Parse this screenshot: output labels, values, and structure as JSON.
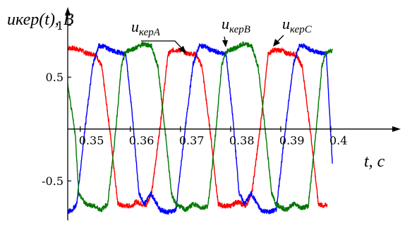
{
  "chart_data": {
    "type": "line",
    "ylabel": "uкер(t), B",
    "xlabel": "t, c",
    "xlim": [
      0.3475,
      0.41
    ],
    "ylim": [
      -0.88,
      1.08
    ],
    "x_ticks": [
      0.35,
      0.36,
      0.37,
      0.38,
      0.39,
      0.4
    ],
    "x_tick_labels": [
      "0.35",
      "0.36",
      "0.37",
      "0.38",
      "0.39",
      "0.4"
    ],
    "y_ticks": [
      1,
      0.5,
      -0.5
    ],
    "y_tick_labels": [
      "1",
      "0.5",
      "-0.5"
    ],
    "grid": false,
    "period": 0.02,
    "series": [
      {
        "name": "uкерA",
        "color": "#ff0000",
        "x": [
          0.3475,
          0.3484,
          0.3502,
          0.3512,
          0.3531,
          0.3543,
          0.356,
          0.3575,
          0.3584,
          0.3602,
          0.3612,
          0.3631,
          0.3643,
          0.366,
          0.3675,
          0.3684,
          0.3702,
          0.3712,
          0.3731,
          0.3743,
          0.376,
          0.3775,
          0.3784,
          0.3802,
          0.3812,
          0.3831,
          0.3843,
          0.386,
          0.3875,
          0.3884,
          0.3902,
          0.3912,
          0.3931,
          0.3943,
          0.396,
          0.3975,
          0.3984,
          0.3993
        ],
        "y": [
          0.78,
          0.78,
          0.76,
          0.73,
          0.72,
          0.6,
          -0.05,
          -0.72,
          -0.74,
          -0.74,
          -0.7,
          -0.74,
          -0.6,
          0.05,
          0.72,
          0.76,
          0.76,
          0.73,
          0.72,
          0.6,
          -0.05,
          -0.72,
          -0.74,
          -0.74,
          -0.7,
          -0.74,
          -0.6,
          0.05,
          0.72,
          0.76,
          0.76,
          0.73,
          0.72,
          0.6,
          -0.05,
          -0.72,
          -0.74,
          -0.73
        ]
      },
      {
        "name": "uкерB",
        "color": "#0000ff",
        "x": [
          0.3475,
          0.3484,
          0.3493,
          0.3508,
          0.3525,
          0.3537,
          0.3548,
          0.356,
          0.3575,
          0.3591,
          0.3605,
          0.3617,
          0.3628,
          0.3641,
          0.366,
          0.3675,
          0.3691,
          0.3708,
          0.3725,
          0.3737,
          0.3748,
          0.376,
          0.3775,
          0.3791,
          0.3805,
          0.3817,
          0.3828,
          0.3841,
          0.386,
          0.3875,
          0.3891,
          0.3908,
          0.3925,
          0.3937,
          0.3948,
          0.396,
          0.3975,
          0.3991,
          0.4003
        ],
        "y": [
          -0.8,
          -0.78,
          -0.72,
          -0.05,
          0.62,
          0.8,
          0.8,
          0.76,
          0.74,
          0.72,
          0.08,
          -0.62,
          -0.72,
          -0.62,
          -0.78,
          -0.8,
          -0.78,
          -0.05,
          0.62,
          0.8,
          0.8,
          0.76,
          0.74,
          0.72,
          0.08,
          -0.62,
          -0.72,
          -0.62,
          -0.78,
          -0.8,
          -0.78,
          -0.05,
          0.62,
          0.8,
          0.8,
          0.76,
          0.74,
          0.72,
          -0.32
        ]
      },
      {
        "name": "uкерC",
        "color": "#007700",
        "x": [
          0.3475,
          0.349,
          0.3497,
          0.351,
          0.3526,
          0.3542,
          0.3555,
          0.357,
          0.3582,
          0.359,
          0.3597,
          0.361,
          0.3626,
          0.3642,
          0.3655,
          0.367,
          0.3682,
          0.369,
          0.3697,
          0.371,
          0.3726,
          0.3742,
          0.3755,
          0.377,
          0.3782,
          0.379,
          0.3797,
          0.381,
          0.3826,
          0.3842,
          0.3855,
          0.387,
          0.3882,
          0.389,
          0.3897,
          0.391,
          0.3926,
          0.3942,
          0.3955,
          0.397,
          0.3982,
          0.399,
          0.4003
        ],
        "y": [
          0.42,
          -0.05,
          -0.62,
          -0.72,
          -0.74,
          -0.78,
          -0.72,
          -0.05,
          0.6,
          0.74,
          0.76,
          0.78,
          0.82,
          0.8,
          0.6,
          -0.05,
          -0.62,
          -0.72,
          -0.74,
          -0.78,
          -0.72,
          -0.76,
          -0.74,
          -0.05,
          0.6,
          0.74,
          0.76,
          0.78,
          0.82,
          0.8,
          0.6,
          -0.05,
          -0.62,
          -0.72,
          -0.74,
          -0.78,
          -0.72,
          -0.76,
          -0.74,
          -0.05,
          0.6,
          0.74,
          0.76
        ]
      }
    ]
  },
  "annotations": [
    {
      "main": "u",
      "sub": "керA",
      "points_to": "uкерA"
    },
    {
      "main": "u",
      "sub": "керB",
      "points_to": "uкерB"
    },
    {
      "main": "u",
      "sub": "керC",
      "points_to": "uкерC"
    }
  ]
}
